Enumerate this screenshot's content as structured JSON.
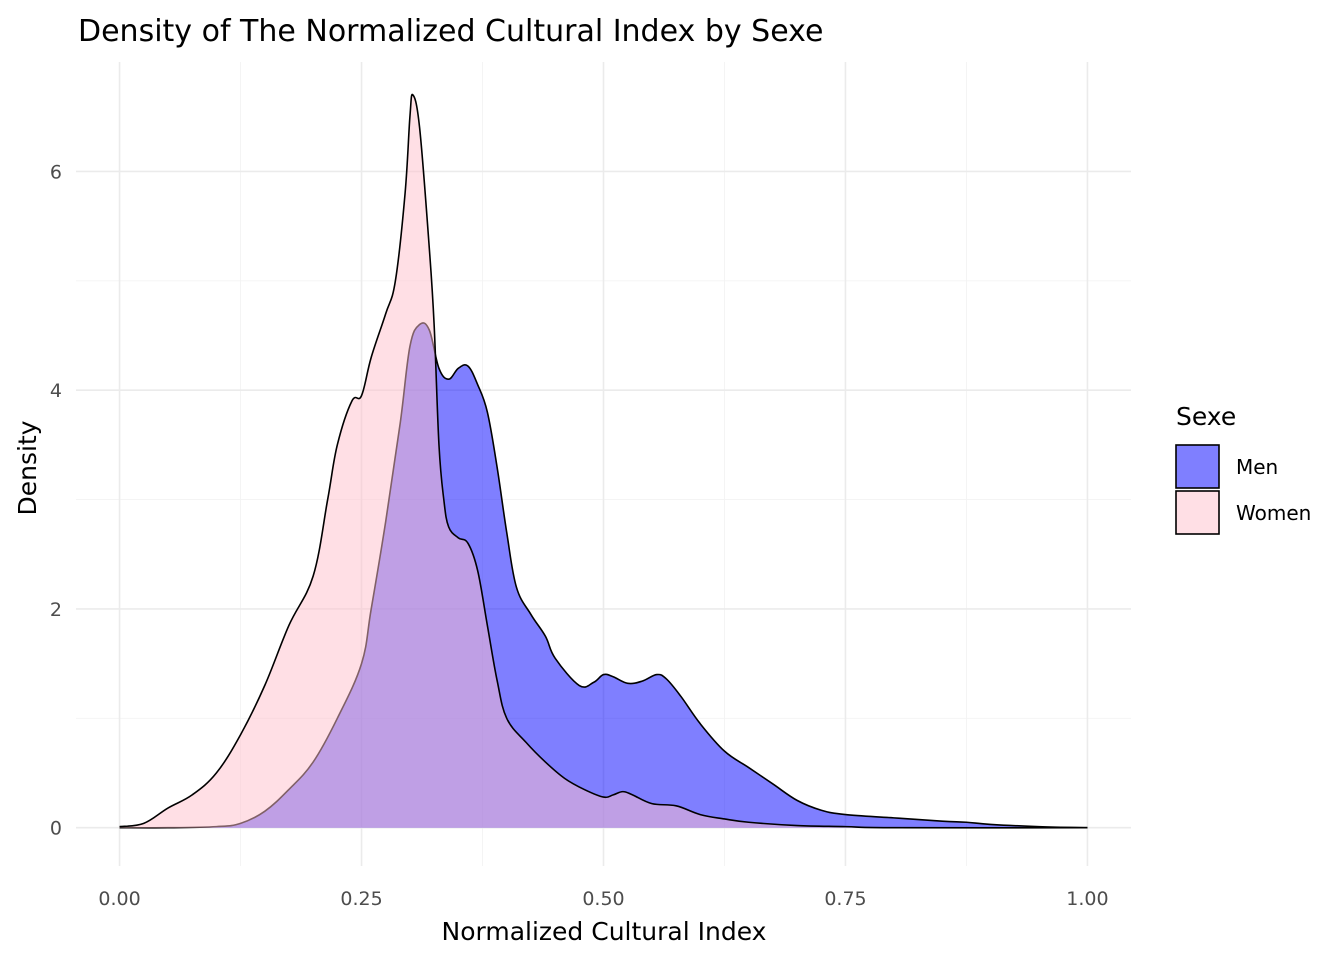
{
  "chart_data": {
    "type": "area",
    "title": "Density of The Normalized Cultural Index by Sexe",
    "xlabel": "Normalized Cultural Index",
    "ylabel": "Density",
    "xlim": [
      -0.045,
      1.045
    ],
    "ylim": [
      -0.35,
      7.0
    ],
    "x_ticks": [
      0.0,
      0.25,
      0.5,
      0.75,
      1.0
    ],
    "x_tick_labels": [
      "0.00",
      "0.25",
      "0.50",
      "0.75",
      "1.00"
    ],
    "y_ticks": [
      0,
      2,
      4,
      6
    ],
    "y_tick_labels": [
      "0",
      "2",
      "4",
      "6"
    ],
    "grid": true,
    "legend": {
      "title": "Sexe",
      "position": "right"
    },
    "series": [
      {
        "name": "Men",
        "color": "#0000FF",
        "opacity": 0.5,
        "points": [
          [
            0.0,
            0.0
          ],
          [
            0.05,
            0.0
          ],
          [
            0.1,
            0.01
          ],
          [
            0.125,
            0.04
          ],
          [
            0.15,
            0.15
          ],
          [
            0.175,
            0.35
          ],
          [
            0.2,
            0.6
          ],
          [
            0.225,
            1.0
          ],
          [
            0.25,
            1.5
          ],
          [
            0.26,
            2.0
          ],
          [
            0.275,
            2.8
          ],
          [
            0.29,
            3.7
          ],
          [
            0.3,
            4.4
          ],
          [
            0.31,
            4.6
          ],
          [
            0.32,
            4.55
          ],
          [
            0.33,
            4.2
          ],
          [
            0.34,
            4.1
          ],
          [
            0.35,
            4.2
          ],
          [
            0.36,
            4.22
          ],
          [
            0.37,
            4.05
          ],
          [
            0.38,
            3.8
          ],
          [
            0.39,
            3.3
          ],
          [
            0.4,
            2.7
          ],
          [
            0.41,
            2.2
          ],
          [
            0.425,
            1.95
          ],
          [
            0.44,
            1.75
          ],
          [
            0.45,
            1.55
          ],
          [
            0.475,
            1.3
          ],
          [
            0.49,
            1.33
          ],
          [
            0.5,
            1.4
          ],
          [
            0.51,
            1.38
          ],
          [
            0.525,
            1.32
          ],
          [
            0.54,
            1.34
          ],
          [
            0.555,
            1.4
          ],
          [
            0.565,
            1.36
          ],
          [
            0.58,
            1.2
          ],
          [
            0.6,
            0.95
          ],
          [
            0.625,
            0.7
          ],
          [
            0.65,
            0.55
          ],
          [
            0.675,
            0.4
          ],
          [
            0.7,
            0.25
          ],
          [
            0.725,
            0.16
          ],
          [
            0.75,
            0.12
          ],
          [
            0.8,
            0.09
          ],
          [
            0.85,
            0.06
          ],
          [
            0.875,
            0.05
          ],
          [
            0.9,
            0.03
          ],
          [
            0.95,
            0.01
          ],
          [
            1.0,
            0.0
          ]
        ]
      },
      {
        "name": "Women",
        "color": "#FFC0CB",
        "opacity": 0.5,
        "points": [
          [
            0.0,
            0.01
          ],
          [
            0.025,
            0.04
          ],
          [
            0.05,
            0.18
          ],
          [
            0.075,
            0.3
          ],
          [
            0.1,
            0.5
          ],
          [
            0.125,
            0.85
          ],
          [
            0.15,
            1.3
          ],
          [
            0.175,
            1.85
          ],
          [
            0.2,
            2.3
          ],
          [
            0.215,
            3.0
          ],
          [
            0.225,
            3.5
          ],
          [
            0.24,
            3.9
          ],
          [
            0.25,
            3.95
          ],
          [
            0.26,
            4.3
          ],
          [
            0.275,
            4.7
          ],
          [
            0.285,
            5.0
          ],
          [
            0.295,
            5.8
          ],
          [
            0.3,
            6.5
          ],
          [
            0.303,
            6.7
          ],
          [
            0.31,
            6.4
          ],
          [
            0.32,
            5.3
          ],
          [
            0.325,
            4.6
          ],
          [
            0.33,
            3.5
          ],
          [
            0.335,
            3.0
          ],
          [
            0.34,
            2.75
          ],
          [
            0.35,
            2.65
          ],
          [
            0.36,
            2.6
          ],
          [
            0.37,
            2.35
          ],
          [
            0.38,
            1.85
          ],
          [
            0.39,
            1.35
          ],
          [
            0.4,
            1.0
          ],
          [
            0.42,
            0.78
          ],
          [
            0.44,
            0.6
          ],
          [
            0.46,
            0.45
          ],
          [
            0.48,
            0.35
          ],
          [
            0.5,
            0.28
          ],
          [
            0.51,
            0.3
          ],
          [
            0.52,
            0.33
          ],
          [
            0.53,
            0.3
          ],
          [
            0.55,
            0.22
          ],
          [
            0.575,
            0.2
          ],
          [
            0.6,
            0.12
          ],
          [
            0.625,
            0.08
          ],
          [
            0.65,
            0.05
          ],
          [
            0.7,
            0.02
          ],
          [
            0.75,
            0.01
          ],
          [
            0.8,
            0.0
          ],
          [
            1.0,
            0.0
          ]
        ]
      }
    ]
  }
}
